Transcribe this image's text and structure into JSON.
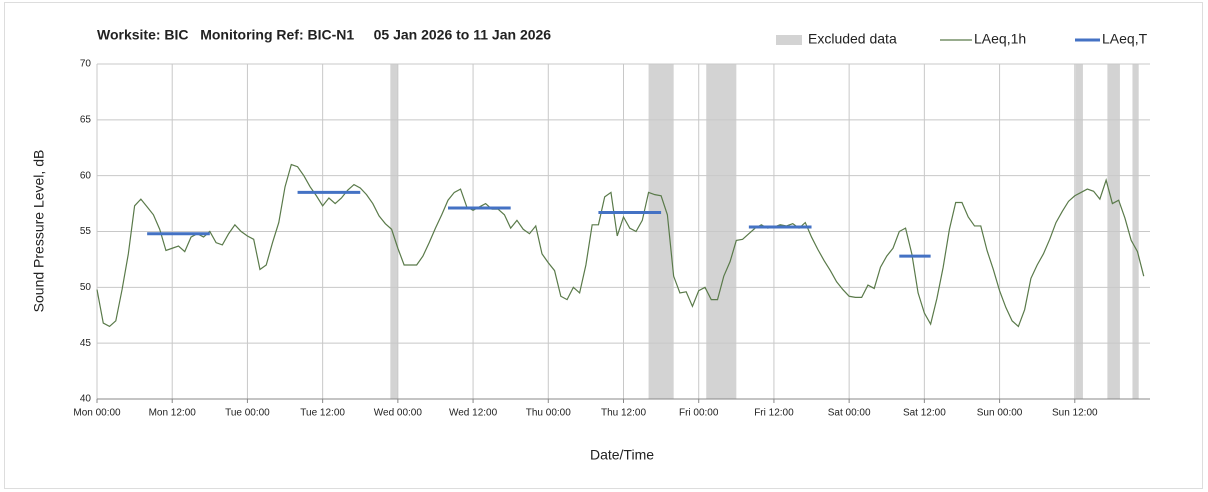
{
  "chart_data": {
    "type": "line",
    "title": "Worksite: BIC   Monitoring Ref: BIC-N1     05 Jan 2026 to 11 Jan 2026",
    "x_label": "Date/Time",
    "y_label": "Sound Pressure Level, dB",
    "xlim": [
      0,
      168
    ],
    "xticks": [
      {
        "value": 0,
        "label": "Mon 00:00"
      },
      {
        "value": 12,
        "label": "Mon 12:00"
      },
      {
        "value": 24,
        "label": "Tue 00:00"
      },
      {
        "value": 36,
        "label": "Tue 12:00"
      },
      {
        "value": 48,
        "label": "Wed 00:00"
      },
      {
        "value": 60,
        "label": "Wed 12:00"
      },
      {
        "value": 72,
        "label": "Thu 00:00"
      },
      {
        "value": 84,
        "label": "Thu 12:00"
      },
      {
        "value": 96,
        "label": "Fri 00:00"
      },
      {
        "value": 108,
        "label": "Fri 12:00"
      },
      {
        "value": 120,
        "label": "Sat 00:00"
      },
      {
        "value": 132,
        "label": "Sat 12:00"
      },
      {
        "value": 144,
        "label": "Sun 00:00"
      },
      {
        "value": 156,
        "label": "Sun 12:00"
      }
    ],
    "ylim": [
      40,
      70
    ],
    "yticks": [
      40,
      45,
      50,
      55,
      60,
      65,
      70
    ],
    "grid": true,
    "legend": "top-right",
    "excluded": {
      "name": "Excluded data",
      "color": "#d3d3d3",
      "ranges": [
        {
          "start": 46.8,
          "end": 48
        },
        {
          "start": 88,
          "end": 92
        },
        {
          "start": 97.2,
          "end": 102
        },
        {
          "start": 156.1,
          "end": 157.3
        },
        {
          "start": 161.2,
          "end": 163.2
        },
        {
          "start": 165.2,
          "end": 166.2
        }
      ]
    },
    "series": [
      {
        "name": "LAeq,1h",
        "color": "#5a7a4a",
        "x": [
          0,
          1,
          2,
          3,
          4,
          5,
          6,
          7,
          8,
          9,
          10,
          11,
          12,
          13,
          14,
          15,
          16,
          17,
          18,
          19,
          20,
          21,
          22,
          23,
          24,
          25,
          26,
          27,
          28,
          29,
          30,
          31,
          32,
          33,
          34,
          35,
          36,
          37,
          38,
          39,
          40,
          41,
          42,
          43,
          44,
          45,
          46,
          47,
          48,
          49,
          50,
          51,
          52,
          53,
          54,
          55,
          56,
          57,
          58,
          59,
          60,
          61,
          62,
          63,
          64,
          65,
          66,
          67,
          68,
          69,
          70,
          71,
          72,
          73,
          74,
          75,
          76,
          77,
          78,
          79,
          80,
          81,
          82,
          83,
          84,
          85,
          86,
          87,
          88,
          89,
          90,
          91,
          92,
          93,
          94,
          95,
          96,
          97,
          98,
          99,
          100,
          101,
          102,
          103,
          104,
          105,
          106,
          107,
          108,
          109,
          110,
          111,
          112,
          113,
          114,
          115,
          116,
          117,
          118,
          119,
          120,
          121,
          122,
          123,
          124,
          125,
          126,
          127,
          128,
          129,
          130,
          131,
          132,
          133,
          134,
          135,
          136,
          137,
          138,
          139,
          140,
          141,
          142,
          143,
          144,
          145,
          146,
          147,
          148,
          149,
          150,
          151,
          152,
          153,
          154,
          155,
          156,
          157,
          158,
          159,
          160,
          161,
          162,
          163,
          164,
          165,
          166,
          167
        ],
        "values": [
          49.8,
          46.8,
          46.5,
          47.0,
          49.8,
          53,
          57.3,
          57.9,
          57.2,
          56.5,
          55.2,
          53.3,
          53.5,
          53.7,
          53.2,
          54.5,
          54.8,
          54.5,
          55,
          54,
          53.8,
          54.8,
          55.6,
          55,
          54.6,
          54.3,
          51.6,
          52,
          54,
          55.8,
          59,
          61,
          60.8,
          60,
          59,
          58.2,
          57.3,
          58,
          57.5,
          58,
          58.7,
          59.2,
          58.9,
          58.3,
          57.5,
          56.4,
          55.7,
          55.2,
          53.5,
          52,
          52,
          52,
          52.8,
          54,
          55.3,
          56.5,
          57.8,
          58.5,
          58.8,
          57.2,
          56.9,
          57.2,
          57.5,
          57,
          57,
          56.5,
          55.3,
          56,
          55.2,
          54.8,
          55.5,
          53,
          52.2,
          51.5,
          49.2,
          48.9,
          50,
          49.5,
          52,
          55.6,
          55.6,
          58.1,
          58.5,
          54.6,
          56.3,
          55.3,
          55,
          56,
          58.5,
          58.3,
          58.2,
          56.5,
          51,
          49.5,
          49.6,
          48.3,
          49.7,
          50,
          48.9,
          48.9,
          51,
          52.3,
          54.2,
          54.3,
          54.8,
          55.3,
          55.6,
          55.3,
          55.4,
          55.6,
          55.5,
          55.7,
          55.3,
          55.8,
          54.5,
          53.4,
          52.4,
          51.5,
          50.5,
          49.8,
          49.2,
          49.1,
          49.1,
          50.2,
          49.9,
          51.8,
          52.8,
          53.5,
          55,
          55.3,
          53,
          49.5,
          47.7,
          46.7,
          49,
          51.8,
          55.2,
          57.6,
          57.6,
          56.3,
          55.5,
          55.5,
          53.3,
          51.6,
          49.7,
          48.2,
          47,
          46.5,
          48,
          50.8,
          52,
          53,
          54.3,
          55.8,
          56.8,
          57.7,
          58.2,
          58.5,
          58.8,
          58.6,
          57.9,
          59.6,
          57.5,
          57.8,
          56.2,
          54.2,
          53.2,
          51
        ]
      },
      {
        "name": "LAeq,T",
        "color": "#4472c4",
        "x_start": [
          8,
          32,
          56,
          80,
          104,
          128
        ],
        "x_end": [
          18,
          42,
          66,
          90,
          114,
          133
        ],
        "values": [
          54.8,
          58.5,
          57.1,
          56.7,
          55.4,
          52.8
        ]
      }
    ]
  }
}
